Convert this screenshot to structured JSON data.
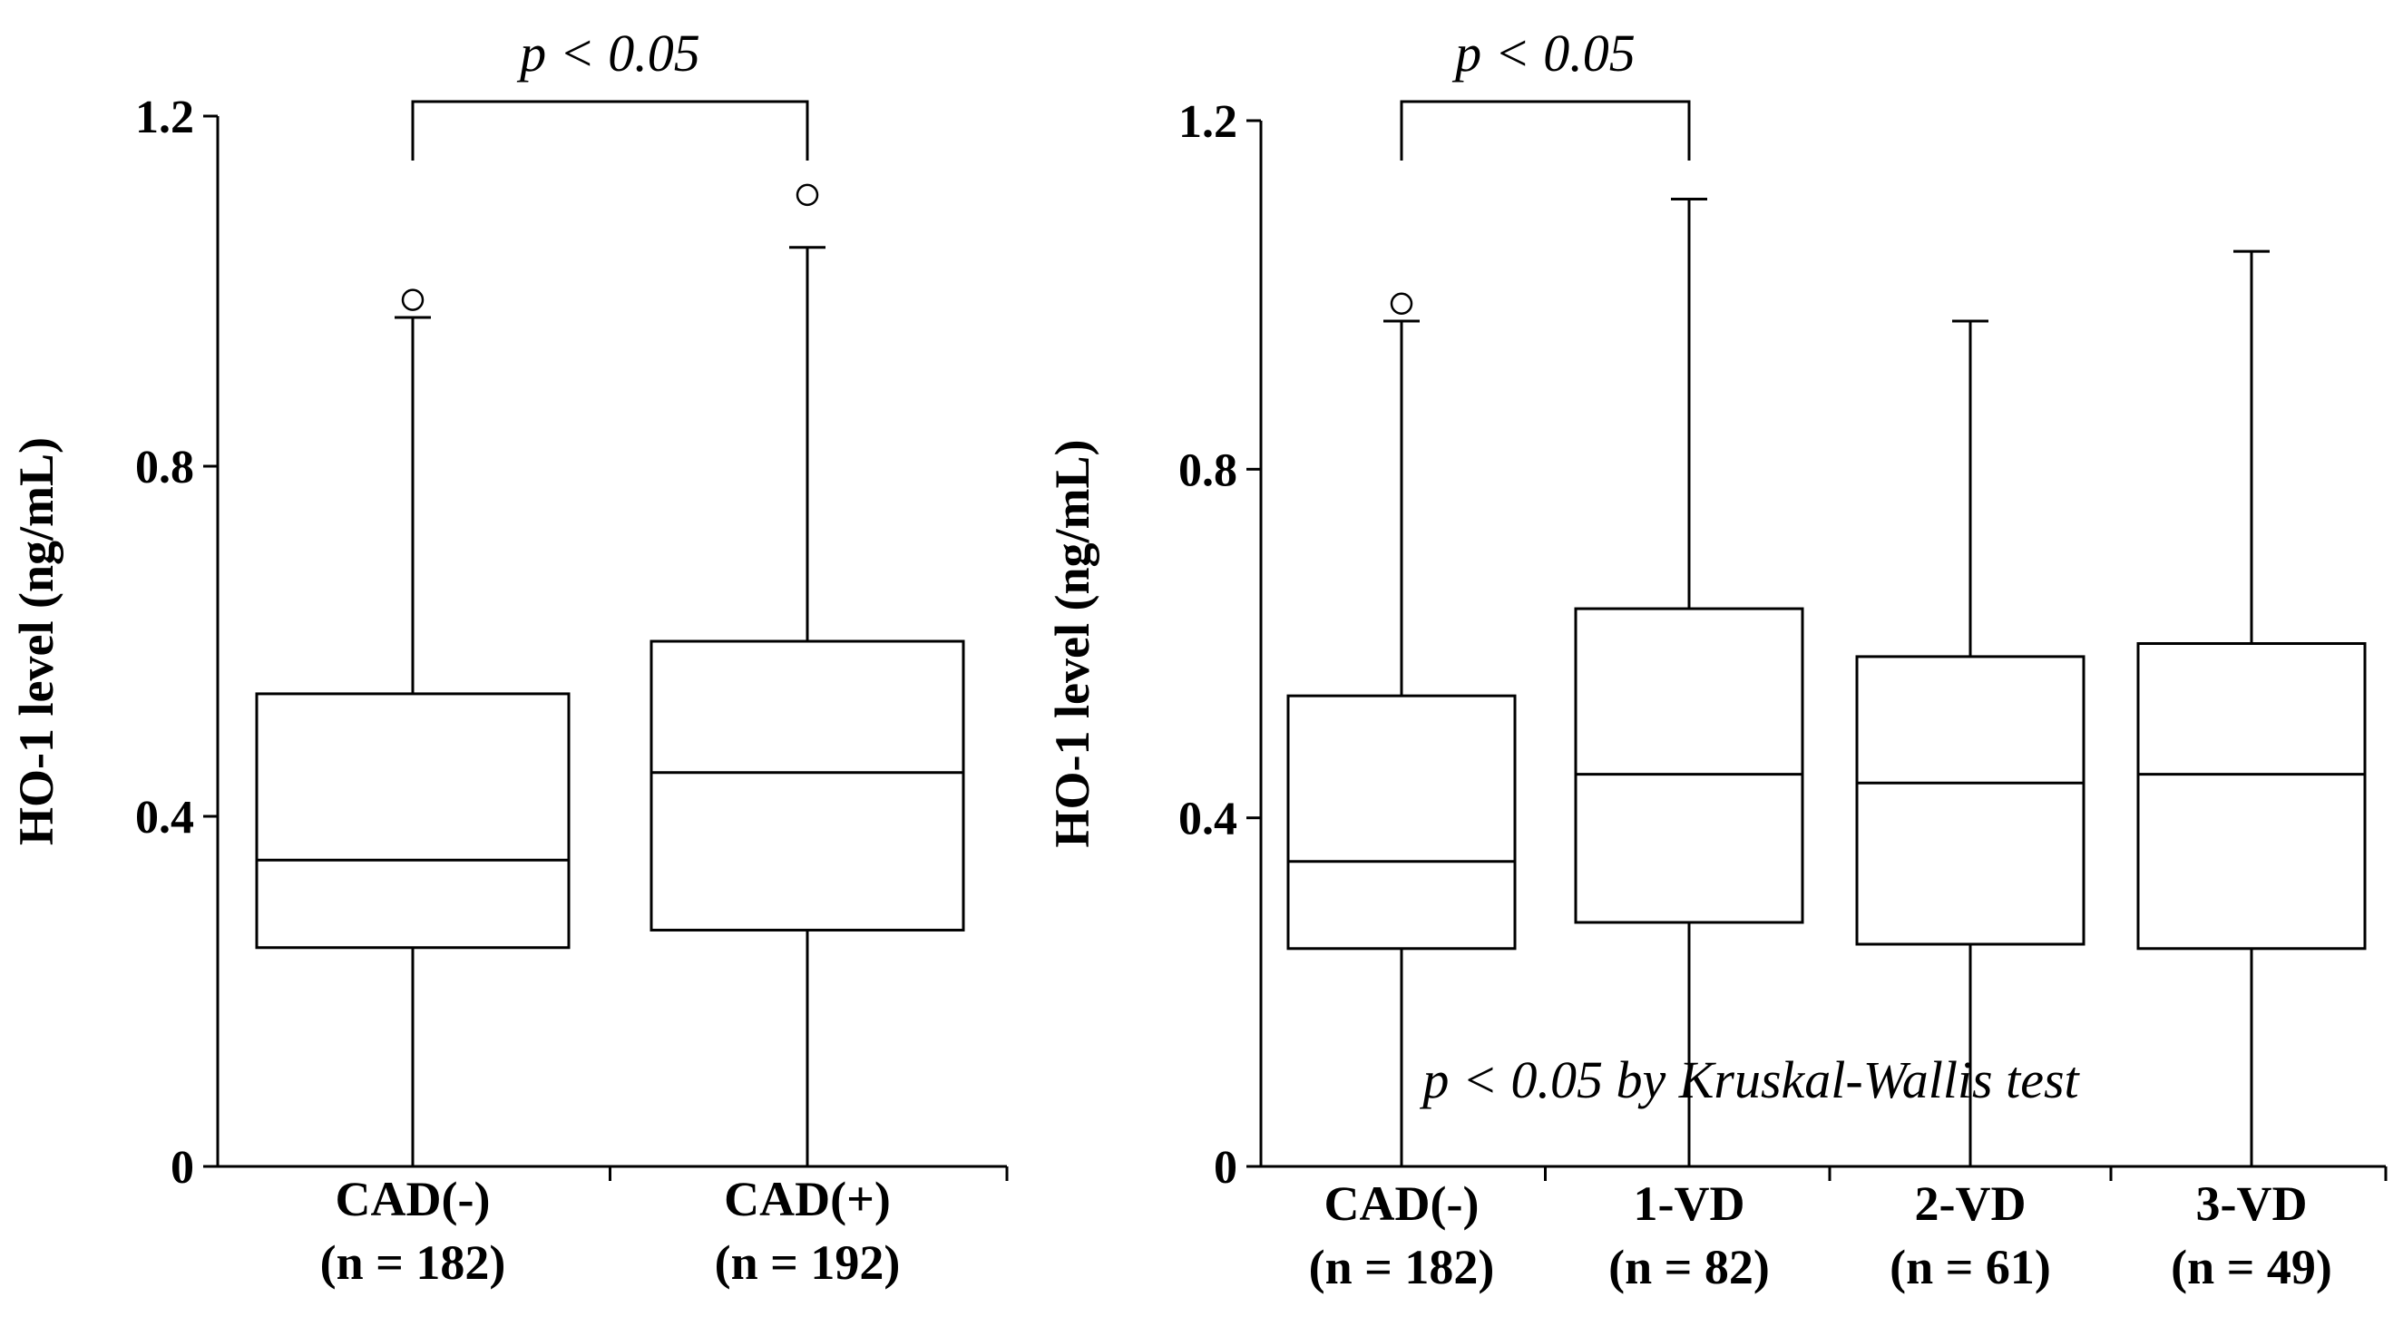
{
  "chart_data": [
    {
      "type": "box",
      "ylabel": "HO-1 level (ng/mL)",
      "ylim": [
        0,
        1.2
      ],
      "yticks": [
        "0",
        "0.4",
        "0.8",
        "1.2"
      ],
      "yticks_values": [
        0,
        0.4,
        0.8,
        1.2
      ],
      "categories": [
        {
          "label": "CAD(-)",
          "n": "(n = 182)"
        },
        {
          "label": "CAD(+)",
          "n": "(n = 192)"
        }
      ],
      "boxes": [
        {
          "min": 0.0,
          "q1": 0.25,
          "median": 0.35,
          "q3": 0.54,
          "max": 0.97,
          "outliers": [
            0.99
          ]
        },
        {
          "min": 0.0,
          "q1": 0.27,
          "median": 0.45,
          "q3": 0.6,
          "max": 1.05,
          "outliers": [
            1.11
          ]
        }
      ],
      "comparisons": [
        {
          "from": 0,
          "to": 1,
          "label": "p < 0.05"
        }
      ],
      "annotations": []
    },
    {
      "type": "box",
      "ylabel": "HO-1 level (ng/mL)",
      "ylim": [
        0,
        1.2
      ],
      "yticks": [
        "0",
        "0.4",
        "0.8",
        "1.2"
      ],
      "yticks_values": [
        0,
        0.4,
        0.8,
        1.2
      ],
      "categories": [
        {
          "label": "CAD(-)",
          "n": "(n = 182)"
        },
        {
          "label": "1-VD",
          "n": "(n = 82)"
        },
        {
          "label": "2-VD",
          "n": "(n = 61)"
        },
        {
          "label": "3-VD",
          "n": "(n = 49)"
        }
      ],
      "boxes": [
        {
          "min": 0.0,
          "q1": 0.25,
          "median": 0.35,
          "q3": 0.54,
          "max": 0.97,
          "outliers": [
            0.99
          ]
        },
        {
          "min": 0.0,
          "q1": 0.28,
          "median": 0.45,
          "q3": 0.64,
          "max": 1.11,
          "outliers": []
        },
        {
          "min": 0.0,
          "q1": 0.255,
          "median": 0.44,
          "q3": 0.585,
          "max": 0.97,
          "outliers": []
        },
        {
          "min": 0.0,
          "q1": 0.25,
          "median": 0.45,
          "q3": 0.6,
          "max": 1.05,
          "outliers": []
        }
      ],
      "comparisons": [
        {
          "from": 0,
          "to": 1,
          "label": "p < 0.05"
        }
      ],
      "annotations": [
        "p < 0.05 by Kruskal-Wallis test"
      ]
    }
  ]
}
